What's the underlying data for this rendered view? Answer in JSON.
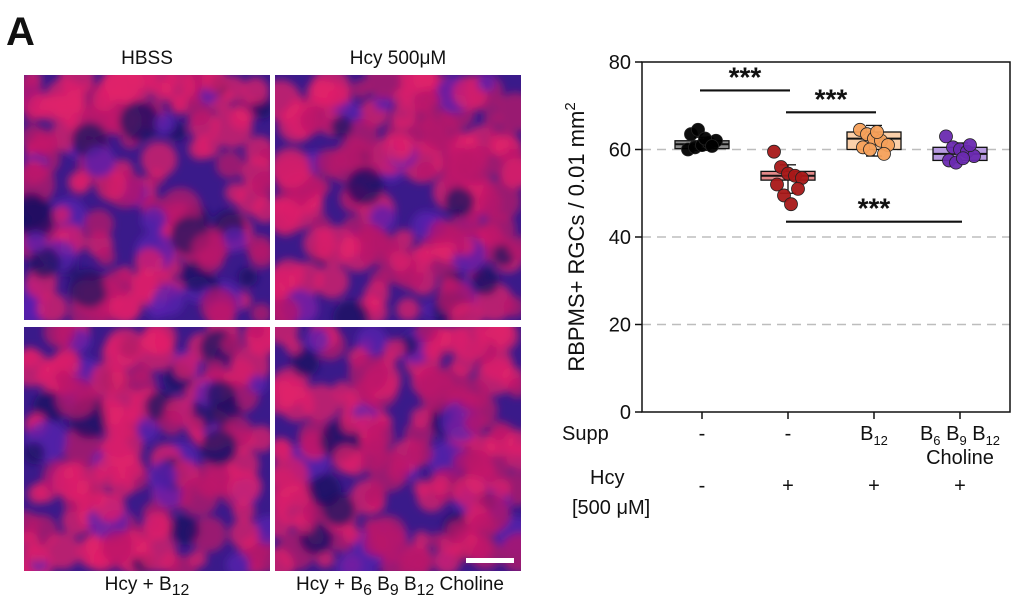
{
  "figure": {
    "panel_letter": "A",
    "micrographs": [
      {
        "label": "HBSS"
      },
      {
        "label": "Hcy 500μM"
      },
      {
        "label_parts": [
          "Hcy + B",
          "12"
        ]
      },
      {
        "label_parts": [
          "Hcy + B",
          "6",
          " B",
          "9",
          " B",
          "12",
          " Choline"
        ]
      }
    ]
  },
  "chart_data": {
    "type": "boxplot",
    "ylabel": "RBPMS+ RGCs / 0.01 mm",
    "ylabel_sup": "2",
    "ylim": [
      0,
      80
    ],
    "yticks": [
      0,
      20,
      40,
      60,
      80
    ],
    "grid": "dashed horizontal at 20, 40, 60",
    "row_labels": {
      "supp": "Supp",
      "hcy": "Hcy",
      "hcy_unit": "[500 μM]"
    },
    "groups": [
      {
        "supp": "-",
        "supp_parts": [
          "-"
        ],
        "hcy": "-",
        "color": "#000000",
        "fill": "#8c8c8c",
        "box": {
          "q1": 60.2,
          "median": 61.2,
          "q3": 62.0,
          "low": 59.8,
          "high": 62.8
        },
        "points": [
          60.0,
          60.5,
          61.0,
          61.5,
          62.0,
          63.5,
          64.5,
          62.5,
          60.8
        ]
      },
      {
        "supp": "-",
        "supp_parts": [
          "-"
        ],
        "hcy": "+",
        "color": "#a81818",
        "fill": "#e58a8a",
        "box": {
          "q1": 53.0,
          "median": 54.0,
          "q3": 55.0,
          "low": 50.0,
          "high": 56.5
        },
        "points": [
          59.5,
          56.0,
          54.5,
          54.0,
          53.5,
          52.0,
          49.5,
          47.5,
          51.0
        ]
      },
      {
        "supp": "B12",
        "supp_parts": [
          "B",
          "12"
        ],
        "hcy": "+",
        "color": "#f5a05a",
        "fill": "#fbd0aa",
        "box": {
          "q1": 60.0,
          "median": 62.5,
          "q3": 64.0,
          "low": 58.5,
          "high": 65.5
        },
        "points": [
          64.5,
          63.5,
          62.5,
          62.0,
          61.0,
          60.5,
          60.0,
          64.0,
          59.0
        ]
      },
      {
        "supp": "B6 B9 B12 Choline",
        "supp_parts": [
          "B",
          "6",
          " B",
          "9",
          " B",
          "12"
        ],
        "supp_line2": "Choline",
        "hcy": "+",
        "color": "#6a2ab0",
        "fill": "#b79ae0",
        "box": {
          "q1": 57.5,
          "median": 59.0,
          "q3": 60.5,
          "low": 57.0,
          "high": 61.5
        },
        "points": [
          63.0,
          60.5,
          60.0,
          59.5,
          58.5,
          57.5,
          57.0,
          58.0,
          61.0
        ]
      }
    ],
    "significance": [
      {
        "from": 0,
        "to": 1,
        "label": "***"
      },
      {
        "from": 1,
        "to": 2,
        "label": "***"
      },
      {
        "from": 1,
        "to": 3,
        "label": "***"
      }
    ]
  }
}
